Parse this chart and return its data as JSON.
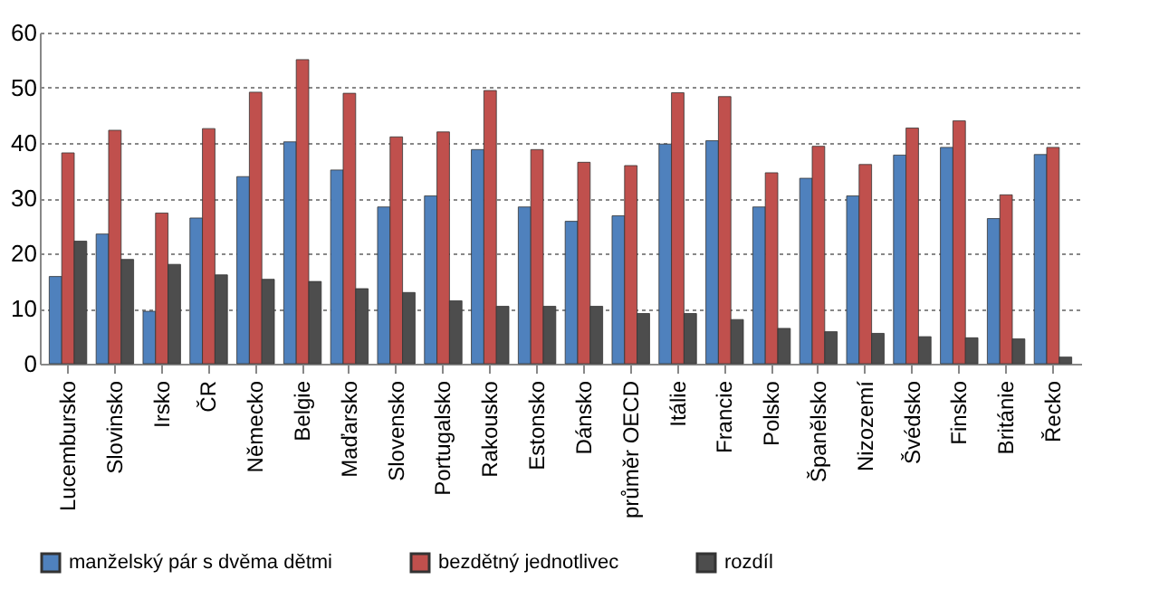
{
  "chart_data": {
    "type": "bar",
    "categories": [
      "Lucembursko",
      "Slovinsko",
      "Irsko",
      "ČR",
      "Německo",
      "Belgie",
      "Maďarsko",
      "Slovensko",
      "Portugalsko",
      "Rakousko",
      "Estonsko",
      "Dánsko",
      "průměr OECD",
      "Itálie",
      "Francie",
      "Polsko",
      "Španělsko",
      "Nizozemí",
      "Švédsko",
      "Finsko",
      "Británie",
      "Řecko"
    ],
    "series": [
      {
        "name": "manželský pár s dvěma dětmi",
        "color": "#4f81bd",
        "values": [
          15.8,
          23.5,
          9.5,
          26.4,
          33.9,
          40.2,
          35.1,
          28.4,
          30.4,
          38.8,
          28.4,
          25.8,
          26.8,
          39.8,
          40.4,
          28.4,
          33.6,
          30.4,
          37.8,
          39.2,
          26.3,
          37.9
        ]
      },
      {
        "name": "bezdětný jednotlivec",
        "color": "#c0504d",
        "values": [
          38.2,
          42.3,
          27.3,
          42.6,
          49.2,
          55.1,
          49.0,
          41.1,
          42.0,
          49.5,
          38.8,
          36.5,
          35.9,
          49.1,
          48.4,
          34.6,
          39.4,
          36.1,
          42.7,
          44.0,
          30.6,
          39.2
        ]
      },
      {
        "name": "rozdíl",
        "color": "#4d4d4d",
        "values": [
          22.2,
          18.9,
          18.0,
          16.1,
          15.3,
          14.9,
          13.6,
          12.9,
          11.4,
          10.4,
          10.4,
          10.4,
          9.1,
          9.1,
          8.0,
          6.4,
          5.8,
          5.5,
          4.9,
          4.7,
          4.5,
          1.2
        ]
      }
    ],
    "ylim": [
      0,
      60
    ],
    "yticks": [
      0,
      10,
      20,
      30,
      40,
      50,
      60
    ],
    "grid": "y",
    "legend": "bottom"
  }
}
